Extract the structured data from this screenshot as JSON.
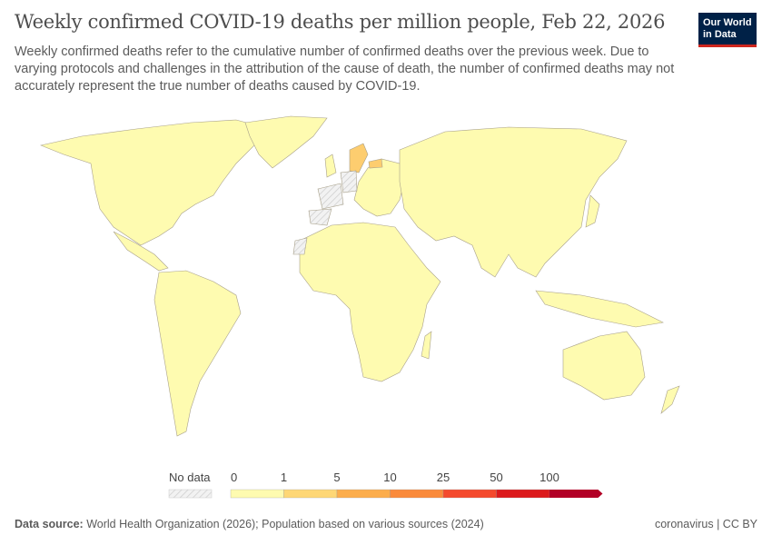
{
  "header": {
    "title": "Weekly confirmed COVID-19 deaths per million people, Feb 22, 2026",
    "subtitle": "Weekly confirmed deaths refer to the cumulative number of confirmed deaths over the previous week. Due to varying protocols and challenges in the attribution of the cause of death, the number of confirmed deaths may not accurately represent the true number of deaths caused by COVID-19.",
    "logo": [
      "Our World",
      "in Data"
    ]
  },
  "map": {
    "type": "choropleth",
    "default_color": "#fefbb0",
    "no_data_color": "#e6e6e6",
    "highlighted": [
      {
        "country": "Sweden",
        "bin": "1-5",
        "color": "#fdcd6f"
      },
      {
        "country": "Latvia",
        "bin": "1-5",
        "color": "#fdcd6f"
      }
    ],
    "no_data": [
      "France",
      "Germany",
      "Spain",
      "Western Sahara"
    ]
  },
  "legend": {
    "no_data_label": "No data",
    "ticks": [
      "0",
      "1",
      "5",
      "10",
      "25",
      "50",
      "100"
    ],
    "colors": [
      "#fefbb0",
      "#fed776",
      "#fcad4c",
      "#fa8a3b",
      "#f44a2d",
      "#dc1a1c",
      "#b20026"
    ]
  },
  "footer": {
    "source_label": "Data source:",
    "source_text": " World Health Organization (2026); Population based on various sources (2024)",
    "right": "coronavirus | CC BY"
  }
}
